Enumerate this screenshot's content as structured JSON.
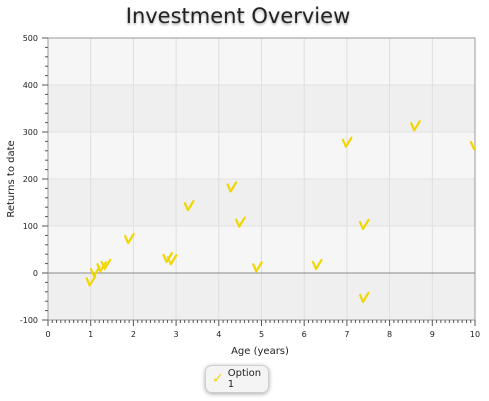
{
  "chart_data": {
    "type": "scatter",
    "title": "Investment Overview",
    "xlabel": "Age (years)",
    "ylabel": "Returns to date",
    "xlim": [
      0,
      10
    ],
    "ylim": [
      -100,
      500
    ],
    "x_ticks": [
      0,
      1,
      2,
      3,
      4,
      5,
      6,
      7,
      8,
      9,
      10
    ],
    "y_ticks": [
      -100,
      0,
      100,
      200,
      300,
      400,
      500
    ],
    "grid": true,
    "legend_position": "bottom",
    "marker": "check",
    "series": [
      {
        "name": "Option 1",
        "color": "#f1d600",
        "points": [
          {
            "x": 1.0,
            "y": -20
          },
          {
            "x": 1.1,
            "y": 0
          },
          {
            "x": 1.25,
            "y": 10
          },
          {
            "x": 1.35,
            "y": 15
          },
          {
            "x": 1.9,
            "y": 70
          },
          {
            "x": 2.8,
            "y": 30
          },
          {
            "x": 2.9,
            "y": 25
          },
          {
            "x": 3.3,
            "y": 140
          },
          {
            "x": 4.3,
            "y": 180
          },
          {
            "x": 4.5,
            "y": 105
          },
          {
            "x": 4.9,
            "y": 10
          },
          {
            "x": 6.3,
            "y": 15
          },
          {
            "x": 7.0,
            "y": 275
          },
          {
            "x": 7.4,
            "y": 100
          },
          {
            "x": 7.4,
            "y": -55
          },
          {
            "x": 8.6,
            "y": 310
          },
          {
            "x": 10.0,
            "y": 270
          }
        ]
      }
    ]
  }
}
